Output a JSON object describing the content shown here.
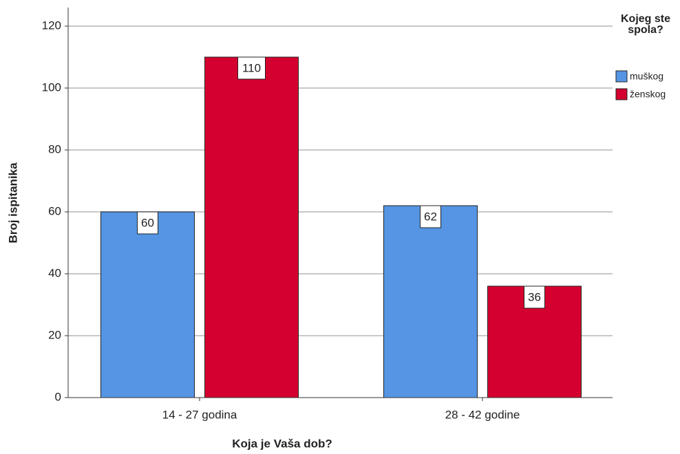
{
  "chart_data": {
    "type": "bar",
    "x_label": "Koja je Vaša dob?",
    "y_label": "Broj ispitanika",
    "legend_title": "Kojeg ste spola?",
    "categories": [
      "14 - 27 godina",
      "28 - 42 godine"
    ],
    "series": [
      {
        "name": "muškog",
        "color": "#5595e3",
        "values": [
          60,
          62
        ]
      },
      {
        "name": "ženskog",
        "color": "#d4002f",
        "values": [
          110,
          36
        ]
      }
    ],
    "ylim": [
      0,
      126
    ],
    "yticks": [
      0,
      20,
      40,
      60,
      80,
      100,
      120
    ],
    "grid": true,
    "legend": "upper right"
  }
}
